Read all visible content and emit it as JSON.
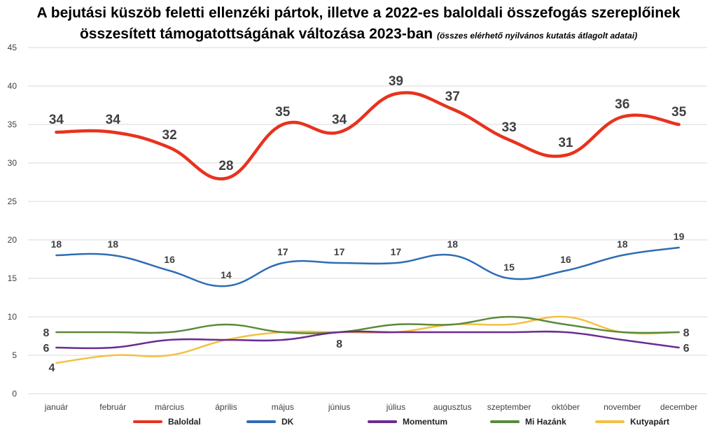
{
  "chart_data": {
    "type": "line",
    "title": "A bejutási küszöb feletti ellenzéki pártok, illetve a 2022-es baloldali összefogás szereplőinek",
    "title_line2": "összesített támogatottságának változása 2023-ban",
    "subtitle": "(összes elérhető nyilvános kutatás átlagolt adatai)",
    "categories": [
      "január",
      "február",
      "március",
      "április",
      "május",
      "június",
      "július",
      "augusztus",
      "szeptember",
      "október",
      "november",
      "december"
    ],
    "ylim": [
      0,
      45
    ],
    "yticks": [
      "0",
      "5",
      "10",
      "15",
      "20",
      "25",
      "30",
      "35",
      "40",
      "45"
    ],
    "grid": true,
    "legend_position": "bottom",
    "series": [
      {
        "name": "Baloldal",
        "color": "#e8321e",
        "values": [
          34,
          34,
          32,
          28,
          35,
          34,
          39,
          37,
          33,
          31,
          36,
          35
        ],
        "labels": [
          "34",
          "34",
          "32",
          "28",
          "35",
          "34",
          "39",
          "37",
          "33",
          "31",
          "36",
          "35"
        ]
      },
      {
        "name": "DK",
        "color": "#2e6db4",
        "values": [
          18,
          18,
          16,
          14,
          17,
          17,
          17,
          18,
          15,
          16,
          18,
          19
        ],
        "labels": [
          "18",
          "18",
          "16",
          "14",
          "17",
          "17",
          "17",
          "18",
          "15",
          "16",
          "18",
          "19"
        ]
      },
      {
        "name": "Momentum",
        "color": "#6a2c91",
        "values": [
          6,
          6,
          7,
          7,
          7,
          8,
          8,
          8,
          8,
          8,
          7,
          6
        ],
        "labels": [
          "6",
          "",
          "",
          "",
          "",
          "",
          "",
          "",
          "",
          "",
          "",
          "6"
        ]
      },
      {
        "name": "Mi Hazánk",
        "color": "#5a8a3a",
        "values": [
          8,
          8,
          8,
          9,
          8,
          8,
          9,
          9,
          10,
          9,
          8,
          8
        ],
        "labels": [
          "8",
          "",
          "",
          "",
          "",
          "8",
          "",
          "",
          "",
          "",
          "",
          "8"
        ]
      },
      {
        "name": "Kutyapárt",
        "color": "#f4c042",
        "values": [
          4,
          5,
          5,
          7,
          8,
          8,
          8,
          9,
          9,
          10,
          8,
          8
        ],
        "labels": [
          "4",
          "",
          "",
          "",
          "",
          "",
          "",
          "",
          "",
          "",
          "",
          ""
        ]
      }
    ]
  }
}
